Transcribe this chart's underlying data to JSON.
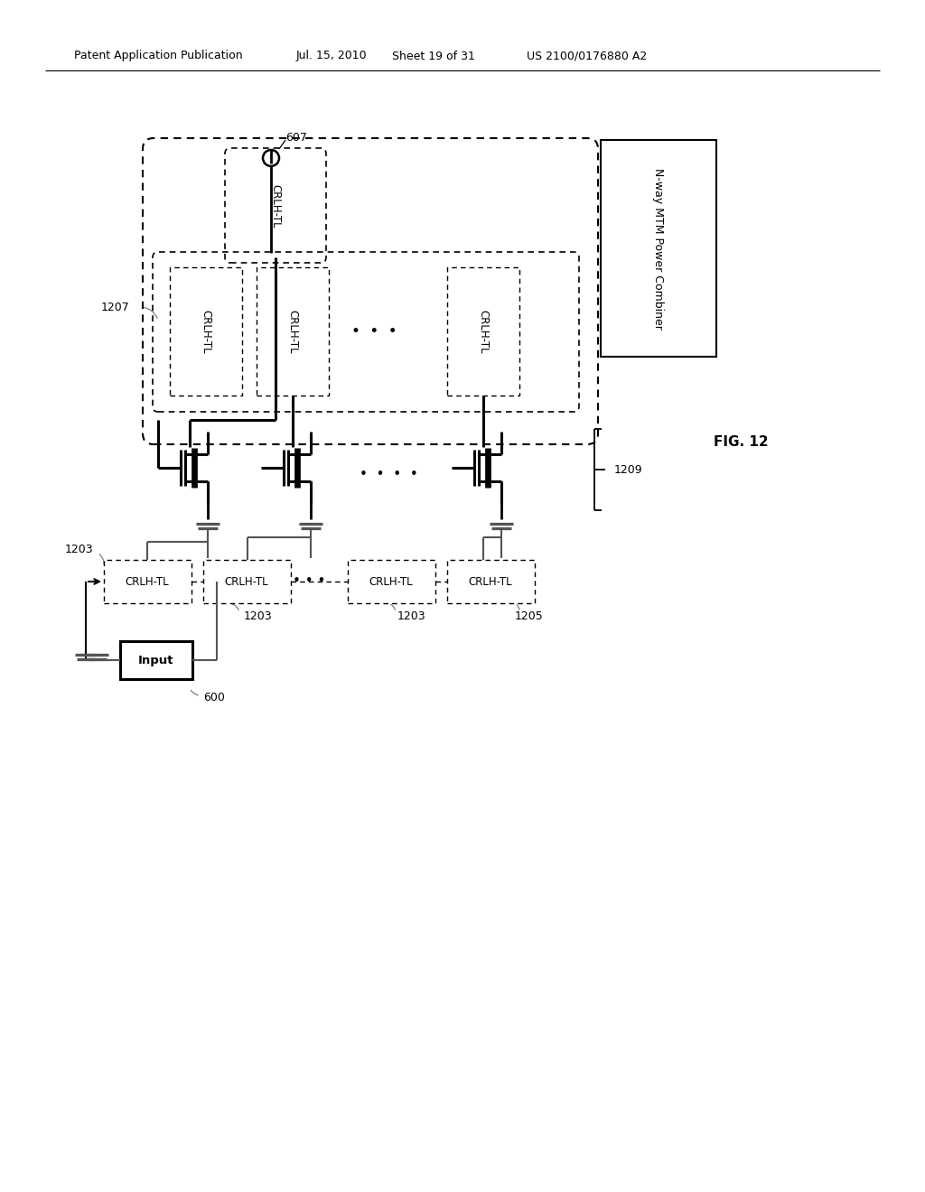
{
  "bg_color": "#ffffff",
  "header_text1": "Patent Application Publication",
  "header_text2": "Jul. 15, 2010",
  "header_text3": "Sheet 19 of 31",
  "header_text4": "US 2100/0176880 A2",
  "fig_label": "FIG. 12",
  "label_607": "607",
  "label_1207": "1207",
  "label_1209": "1209",
  "label_1203a": "1203",
  "label_1203b": "1203",
  "label_1203c": "1203",
  "label_1205": "1205",
  "label_600": "600",
  "label_nway": "N-way MTM Power Combiner",
  "input_label": "Input",
  "crlh_label": "CRLH-TL"
}
